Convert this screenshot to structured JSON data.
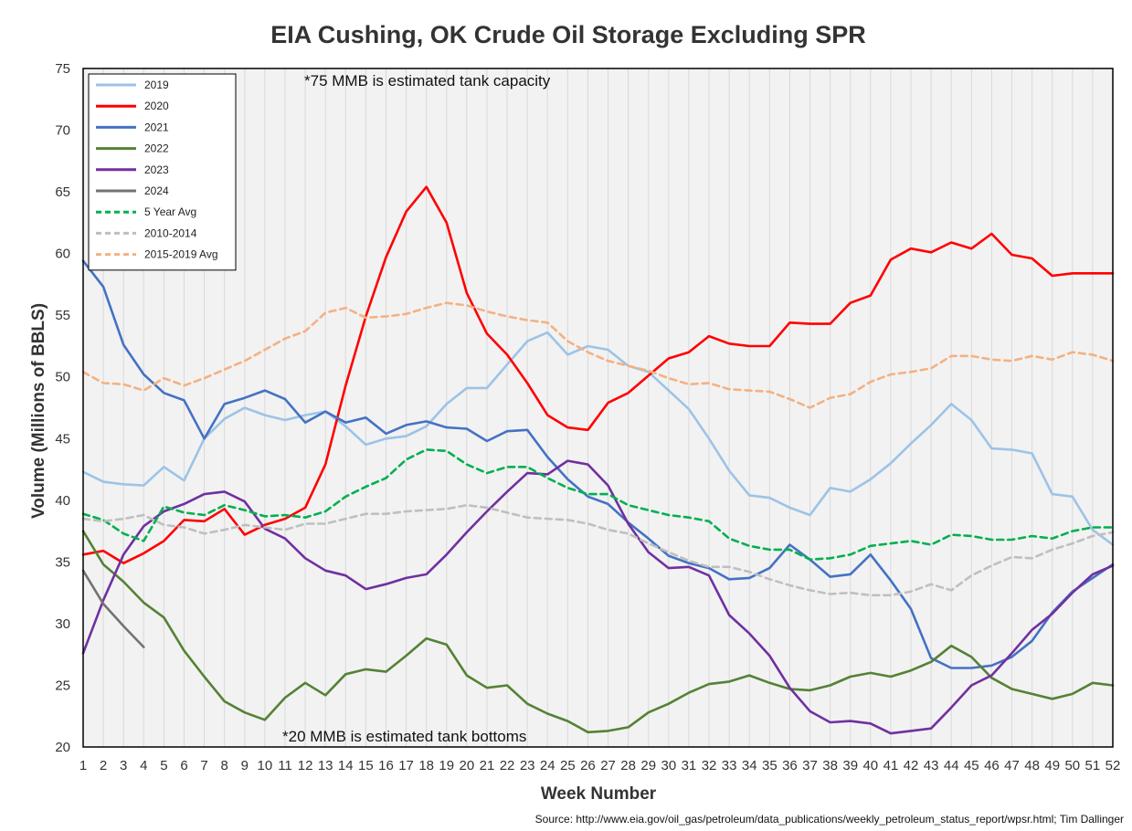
{
  "chart_data": {
    "type": "line",
    "title": "EIA Cushing, OK Crude Oil Storage Excluding SPR",
    "xlabel": "Week Number",
    "ylabel": "Volume (Millions of BBLS)",
    "xlim": [
      1,
      52
    ],
    "ylim": [
      20,
      75
    ],
    "yticks": [
      20,
      25,
      30,
      35,
      40,
      45,
      50,
      55,
      60,
      65,
      70,
      75
    ],
    "xticks": [
      1,
      2,
      3,
      4,
      5,
      6,
      7,
      8,
      9,
      10,
      11,
      12,
      13,
      14,
      15,
      16,
      17,
      18,
      19,
      20,
      21,
      22,
      23,
      24,
      25,
      26,
      27,
      28,
      29,
      30,
      31,
      32,
      33,
      34,
      35,
      36,
      37,
      38,
      39,
      40,
      41,
      42,
      43,
      44,
      45,
      46,
      47,
      48,
      49,
      50,
      51,
      52
    ],
    "grid": "vertical",
    "legend_position": "top-left",
    "background": "#f2f2f2",
    "annotations": [
      {
        "text": "*75 MMB is estimated tank capacity"
      },
      {
        "text": "*20 MMB is estimated tank bottoms"
      }
    ],
    "source": "Source: http://www.eia.gov/oil_gas/petroleum/data_publications/weekly_petroleum_status_report/wpsr.html; Tim Dallinger",
    "series": [
      {
        "name": "2019",
        "color": "#9dc3e6",
        "dash": "solid",
        "values": [
          42.3,
          41.5,
          41.3,
          41.2,
          42.7,
          41.6,
          45.0,
          46.6,
          47.5,
          46.9,
          46.5,
          46.9,
          47.2,
          46.0,
          44.5,
          45.0,
          45.2,
          46.0,
          47.8,
          49.1,
          49.1,
          51.0,
          52.9,
          53.6,
          51.8,
          52.5,
          52.2,
          50.9,
          50.4,
          48.9,
          47.4,
          45.0,
          42.4,
          40.4,
          40.2,
          39.4,
          38.8,
          41.0,
          40.7,
          41.7,
          43.0,
          44.6,
          46.1,
          47.8,
          46.5,
          44.2,
          44.1,
          43.8,
          40.5,
          40.3,
          37.6,
          36.4
        ]
      },
      {
        "name": "2020",
        "color": "#ff0000",
        "dash": "solid",
        "values": [
          35.6,
          35.9,
          34.9,
          35.7,
          36.7,
          38.4,
          38.3,
          39.3,
          37.2,
          38.0,
          38.5,
          39.4,
          42.9,
          49.3,
          54.9,
          59.7,
          63.4,
          65.4,
          62.5,
          56.8,
          53.5,
          51.8,
          49.5,
          46.9,
          45.9,
          45.7,
          47.9,
          48.7,
          50.1,
          51.5,
          52.0,
          53.3,
          52.7,
          52.5,
          52.5,
          54.4,
          54.3,
          54.3,
          56.0,
          56.6,
          59.5,
          60.4,
          60.1,
          60.9,
          60.4,
          61.6,
          59.9,
          59.6,
          58.2,
          58.4,
          58.4,
          58.4
        ]
      },
      {
        "name": "2021",
        "color": "#4472c4",
        "dash": "solid",
        "values": [
          59.4,
          57.3,
          52.6,
          50.2,
          48.7,
          48.1,
          45.0,
          47.8,
          48.3,
          48.9,
          48.2,
          46.3,
          47.2,
          46.3,
          46.7,
          45.4,
          46.1,
          46.4,
          45.9,
          45.8,
          44.8,
          45.6,
          45.7,
          43.5,
          41.7,
          40.3,
          39.7,
          38.2,
          36.9,
          35.5,
          34.9,
          34.5,
          33.6,
          33.7,
          34.5,
          36.4,
          35.2,
          33.8,
          34.0,
          35.6,
          33.5,
          31.2,
          27.2,
          26.4,
          26.4,
          26.6,
          27.3,
          28.6,
          30.9,
          32.6,
          33.7,
          34.8
        ]
      },
      {
        "name": "2022",
        "color": "#548235",
        "dash": "solid",
        "values": [
          37.5,
          34.8,
          33.4,
          31.7,
          30.5,
          27.8,
          25.7,
          23.7,
          22.8,
          22.2,
          24.0,
          25.2,
          24.2,
          25.9,
          26.3,
          26.1,
          27.4,
          28.8,
          28.3,
          25.8,
          24.8,
          25.0,
          23.5,
          22.7,
          22.1,
          21.2,
          21.3,
          21.6,
          22.8,
          23.5,
          24.4,
          25.1,
          25.3,
          25.8,
          25.2,
          24.7,
          24.6,
          25.0,
          25.7,
          26.0,
          25.7,
          26.2,
          26.9,
          28.2,
          27.3,
          25.6,
          24.7,
          24.3,
          23.9,
          24.3,
          25.2,
          25.0
        ]
      },
      {
        "name": "2023",
        "color": "#7030a0",
        "dash": "solid",
        "values": [
          27.6,
          31.9,
          35.6,
          37.9,
          39.1,
          39.7,
          40.5,
          40.7,
          39.9,
          37.7,
          36.9,
          35.3,
          34.3,
          33.9,
          32.8,
          33.2,
          33.7,
          34.0,
          35.6,
          37.4,
          39.1,
          40.7,
          42.2,
          42.1,
          43.2,
          42.9,
          41.2,
          38.1,
          35.8,
          34.5,
          34.6,
          33.9,
          30.7,
          29.2,
          27.4,
          24.8,
          22.9,
          22.0,
          22.1,
          21.9,
          21.1,
          21.3,
          21.5,
          23.2,
          25.0,
          25.8,
          27.6,
          29.5,
          30.8,
          32.5,
          34.0,
          34.7
        ]
      },
      {
        "name": "2024",
        "color": "#767171",
        "dash": "solid",
        "values": [
          34.3,
          31.6,
          29.8,
          28.1
        ]
      },
      {
        "name": "5 Year Avg",
        "color": "#00b050",
        "dash": "dashed",
        "values": [
          38.9,
          38.4,
          37.3,
          36.7,
          39.5,
          39.0,
          38.8,
          39.6,
          39.2,
          38.7,
          38.8,
          38.6,
          39.1,
          40.3,
          41.1,
          41.8,
          43.3,
          44.1,
          44.0,
          42.9,
          42.2,
          42.7,
          42.7,
          41.8,
          41.0,
          40.5,
          40.5,
          39.6,
          39.2,
          38.8,
          38.6,
          38.3,
          36.9,
          36.3,
          36.0,
          36.0,
          35.2,
          35.3,
          35.6,
          36.3,
          36.5,
          36.7,
          36.4,
          37.2,
          37.1,
          36.8,
          36.8,
          37.1,
          36.9,
          37.5,
          37.8,
          37.8
        ]
      },
      {
        "name": "2010-2014",
        "color": "#bfbfbf",
        "dash": "dashed",
        "values": [
          38.5,
          38.3,
          38.5,
          38.8,
          38.0,
          37.8,
          37.3,
          37.6,
          38.0,
          37.8,
          37.6,
          38.1,
          38.1,
          38.5,
          38.9,
          38.9,
          39.1,
          39.2,
          39.3,
          39.6,
          39.4,
          39.0,
          38.6,
          38.5,
          38.4,
          38.1,
          37.6,
          37.3,
          36.5,
          35.8,
          35.1,
          34.6,
          34.6,
          34.2,
          33.6,
          33.1,
          32.7,
          32.4,
          32.5,
          32.3,
          32.3,
          32.6,
          33.2,
          32.7,
          33.9,
          34.7,
          35.4,
          35.3,
          36.0,
          36.5,
          37.1,
          37.4
        ]
      },
      {
        "name": "2015-2019 Avg",
        "color": "#f4b183",
        "dash": "dashed",
        "values": [
          50.4,
          49.5,
          49.4,
          48.9,
          49.9,
          49.3,
          49.9,
          50.6,
          51.3,
          52.2,
          53.1,
          53.7,
          55.2,
          55.6,
          54.8,
          54.9,
          55.1,
          55.6,
          56.0,
          55.8,
          55.3,
          54.9,
          54.6,
          54.4,
          52.9,
          52.0,
          51.3,
          50.9,
          50.5,
          49.9,
          49.4,
          49.5,
          49.0,
          48.9,
          48.8,
          48.2,
          47.5,
          48.3,
          48.6,
          49.6,
          50.2,
          50.4,
          50.7,
          51.7,
          51.7,
          51.4,
          51.3,
          51.7,
          51.4,
          52.0,
          51.8,
          51.3
        ]
      }
    ]
  }
}
